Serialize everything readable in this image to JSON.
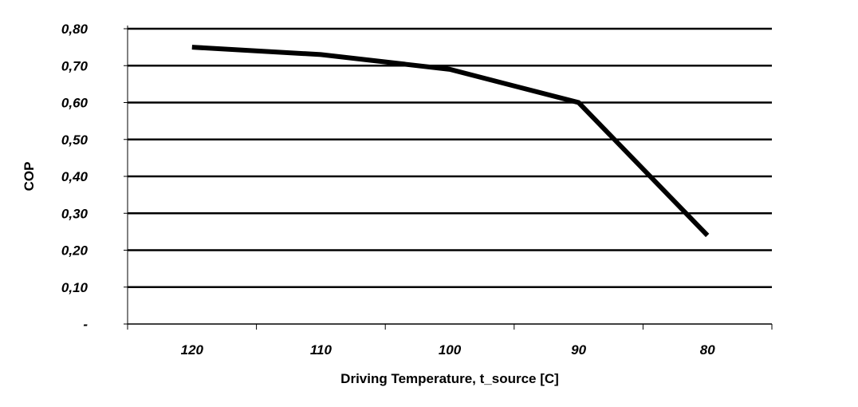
{
  "chart_data": {
    "type": "line",
    "title": "",
    "xlabel": "Driving Temperature, t_source [C]",
    "ylabel": "COP",
    "categories": [
      "120",
      "110",
      "100",
      "90",
      "80"
    ],
    "series": [
      {
        "values": [
          0.75,
          0.73,
          0.69,
          0.6,
          0.24
        ],
        "color": "#000000"
      }
    ],
    "ylim": [
      0,
      0.8
    ],
    "yticks": [
      0,
      0.1,
      0.2,
      0.3,
      0.4,
      0.5,
      0.6,
      0.7,
      0.8
    ],
    "ytick_labels": [
      "-",
      "0,10",
      "0,20",
      "0,30",
      "0,40",
      "0,50",
      "0,60",
      "0,70",
      "0,80"
    ],
    "grid": "horizontal",
    "legend": "none"
  }
}
